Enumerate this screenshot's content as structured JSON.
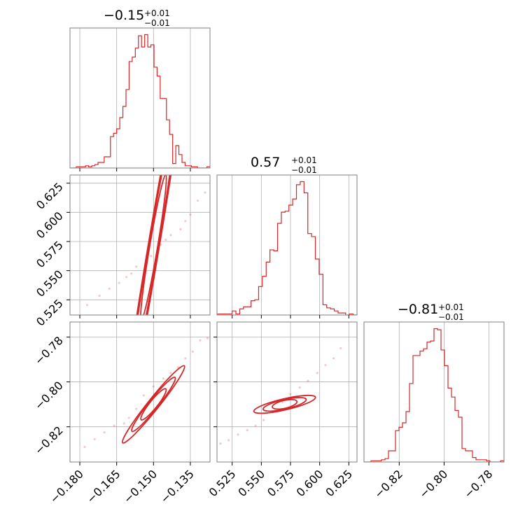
{
  "chart_data": {
    "type": "corner",
    "color": "#d62728",
    "parameters": [
      {
        "median": -0.15,
        "title_value": "−0.15",
        "title_plus": "+0.01",
        "title_minus": "−0.01",
        "range": [
          -0.184,
          -0.127
        ],
        "ticks": [
          -0.18,
          -0.165,
          -0.15,
          -0.135
        ],
        "tick_labels": [
          "−0.180",
          "−0.165",
          "−0.150",
          "−0.135"
        ]
      },
      {
        "median": 0.57,
        "title_value": "0.57",
        "title_plus": "+0.01",
        "title_minus": "−0.01",
        "range": [
          0.512,
          0.632
        ],
        "ticks": [
          0.525,
          0.55,
          0.575,
          0.6,
          0.625
        ],
        "tick_labels": [
          "0.525",
          "0.550",
          "0.575",
          "0.600",
          "0.625"
        ]
      },
      {
        "median": -0.81,
        "title_value": "−0.81",
        "title_plus": "+0.01",
        "title_minus": "−0.01",
        "range": [
          -0.8357,
          -0.7733
        ],
        "ticks": [
          -0.82,
          -0.8,
          -0.78
        ],
        "tick_labels": [
          "−0.82",
          "−0.80",
          "−0.78"
        ]
      }
    ],
    "histograms": [
      {
        "param": 0,
        "counts": [
          0,
          0,
          1,
          1,
          1,
          2,
          1,
          2,
          3,
          5,
          5,
          10,
          10,
          28,
          31,
          35,
          45,
          55,
          70,
          95,
          99,
          107,
          118,
          108,
          119,
          108,
          110,
          90,
          82,
          62,
          62,
          43,
          30,
          4,
          20,
          12,
          5,
          2,
          2,
          1,
          1,
          0,
          0,
          0,
          1
        ]
      },
      {
        "param": 1,
        "counts": [
          1,
          1,
          1,
          1,
          4,
          1,
          6,
          8,
          8,
          14,
          15,
          28,
          38,
          52,
          64,
          63,
          90,
          101,
          102,
          108,
          114,
          128,
          131,
          120,
          80,
          77,
          55,
          40,
          10,
          7,
          6,
          4,
          2,
          2,
          0,
          1,
          0
        ]
      },
      {
        "param": 2,
        "counts": [
          0,
          0,
          1,
          1,
          1,
          2,
          3,
          10,
          10,
          28,
          31,
          35,
          45,
          70,
          95,
          95,
          99,
          101,
          107,
          108,
          119,
          118,
          100,
          86,
          66,
          58,
          46,
          40,
          12,
          10,
          10,
          4,
          2,
          2,
          2,
          1,
          0,
          0,
          0,
          1
        ]
      }
    ],
    "scatter_pairs": [
      {
        "x_param": 0,
        "y_param": 1,
        "slope": 12.5,
        "x": [
          -0.177,
          -0.172,
          -0.168,
          -0.164,
          -0.161,
          -0.159,
          -0.157,
          -0.153,
          -0.151,
          -0.147,
          -0.145,
          -0.143,
          -0.139,
          -0.137,
          -0.135,
          -0.132,
          -0.129
        ],
        "y": [
          0.5205,
          0.5285,
          0.5345,
          0.5395,
          0.5445,
          0.5475,
          0.5535,
          0.5585,
          0.5625,
          0.5725,
          0.5765,
          0.5805,
          0.5855,
          0.5925,
          0.598,
          0.61,
          0.617
        ]
      },
      {
        "x_param": 0,
        "y_param": 2,
        "slope": 1.37,
        "x": [
          -0.178,
          -0.174,
          -0.17,
          -0.166,
          -0.162,
          -0.16,
          -0.157,
          -0.154,
          -0.15,
          -0.146,
          -0.143,
          -0.14,
          -0.137,
          -0.134,
          -0.131,
          -0.128
        ],
        "y": [
          -0.829,
          -0.8255,
          -0.8225,
          -0.8195,
          -0.8185,
          -0.816,
          -0.812,
          -0.806,
          -0.802,
          -0.7985,
          -0.796,
          -0.7935,
          -0.7895,
          -0.7865,
          -0.7815,
          -0.7805
        ]
      },
      {
        "x_param": 1,
        "y_param": 2,
        "slope": 0.12,
        "x": [
          0.515,
          0.522,
          0.53,
          0.538,
          0.545,
          0.552,
          0.56,
          0.568,
          0.575,
          0.583,
          0.59,
          0.598,
          0.605,
          0.612,
          0.618
        ],
        "y": [
          -0.8275,
          -0.826,
          -0.8235,
          -0.8215,
          -0.8195,
          -0.817,
          -0.8135,
          -0.809,
          -0.8055,
          -0.8025,
          -0.7995,
          -0.796,
          -0.7925,
          -0.7895,
          -0.785
        ]
      }
    ],
    "contour_levels_sigma": [
      0.8,
      1.4,
      2.0
    ],
    "grid": true
  }
}
